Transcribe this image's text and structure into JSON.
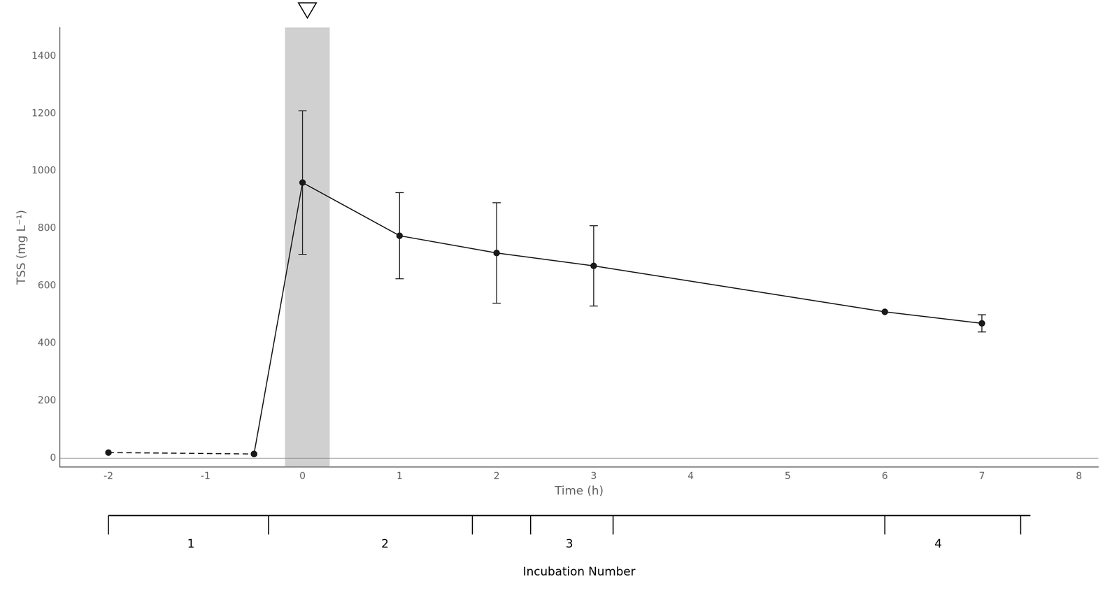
{
  "chart_data": {
    "type": "line",
    "xlabel": "Time (h)",
    "ylabel": "TSS (mg L⁻¹)",
    "xlim": [
      -2.5,
      8.2
    ],
    "ylim": [
      -30,
      1500
    ],
    "xticks": [
      -2,
      -1,
      0,
      1,
      2,
      3,
      4,
      5,
      6,
      7,
      8
    ],
    "yticks": [
      0,
      200,
      400,
      600,
      800,
      1000,
      1200,
      1400
    ],
    "grid": false,
    "series": [
      {
        "x": [
          -2,
          -0.5
        ],
        "values": [
          20,
          15
        ],
        "errors": [
          0,
          0
        ],
        "color": "#1a1a1a",
        "line_style": "dashed",
        "marker": "circle"
      },
      {
        "x": [
          -0.5,
          0,
          1,
          2,
          3,
          6,
          7
        ],
        "values": [
          15,
          960,
          775,
          715,
          670,
          510,
          470
        ],
        "errors": [
          0,
          250,
          150,
          175,
          140,
          0,
          30
        ],
        "color": "#1a1a1a",
        "line_style": "solid",
        "marker": "circle"
      }
    ],
    "shaded_band": {
      "x": [
        -0.18,
        0.28
      ],
      "color": "#c8c8c8"
    },
    "reference_line_y": 0,
    "event_marker": {
      "x": 0.05,
      "marker": "triangle"
    },
    "incubation": {
      "label": "Incubation Number",
      "start": -2.0,
      "end": 7.5,
      "ticks": [
        -2.0,
        -0.35,
        1.75,
        2.35,
        3.2,
        6.0,
        7.4
      ],
      "labels": [
        {
          "value": -1.15,
          "label": "1"
        },
        {
          "value": 0.85,
          "label": "2"
        },
        {
          "value": 2.75,
          "label": "3"
        },
        {
          "value": 6.55,
          "label": "4"
        }
      ]
    }
  }
}
